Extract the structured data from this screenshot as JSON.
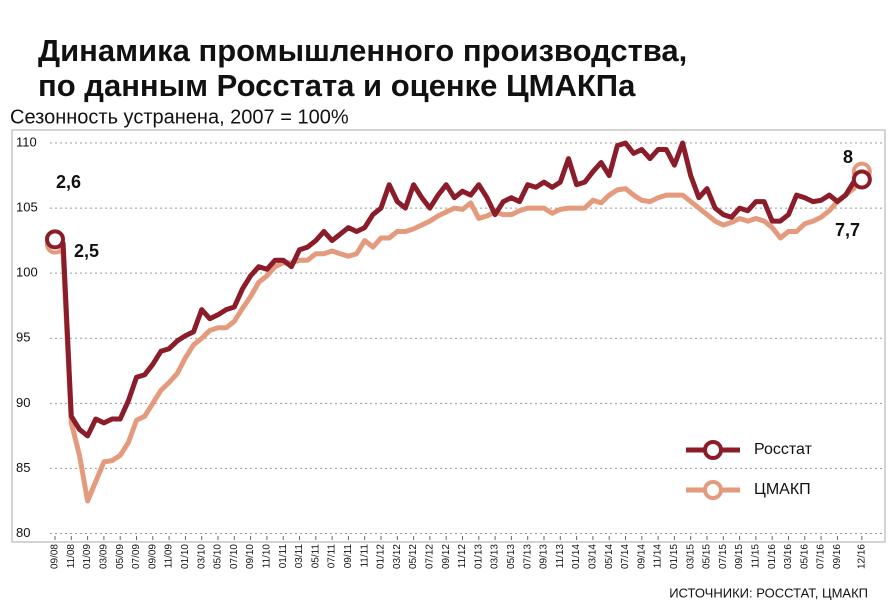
{
  "chart_data": {
    "type": "line",
    "title": [
      "Динамика промышленного производства,",
      "по данным Росстата и оценке ЦМАКПа"
    ],
    "subtitle": "Сезонность устранена, 2007 = 100%",
    "source": "ИСТОЧНИКИ: РОССТАТ, ЦМАКП",
    "annotations": [
      "2,6",
      "2,5",
      "8",
      "7,7"
    ],
    "categories": [
      "09/08",
      null,
      "11/08",
      null,
      "01/09",
      null,
      "03/09",
      null,
      "05/09",
      null,
      "07/09",
      null,
      "09/09",
      null,
      "11/09",
      null,
      "01/10",
      null,
      "03/10",
      null,
      "05/10",
      null,
      "07/10",
      null,
      "09/10",
      null,
      "11/10",
      null,
      "01/11",
      null,
      "03/11",
      null,
      "05/11",
      null,
      "07/11",
      null,
      "09/11",
      null,
      "11/11",
      null,
      "01/12",
      null,
      "03/12",
      null,
      "05/12",
      null,
      "07/12",
      null,
      "09/12",
      null,
      "11/12",
      null,
      "01/13",
      null,
      "03/13",
      null,
      "05/13",
      null,
      "07/13",
      null,
      "09/13",
      null,
      "11/13",
      null,
      "01/14",
      null,
      "03/14",
      null,
      "05/14",
      null,
      "07/14",
      null,
      "09/14",
      null,
      "11/14",
      null,
      "01/15",
      null,
      "03/15",
      null,
      "05/15",
      null,
      "07/15",
      null,
      "09/15",
      null,
      "11/15",
      null,
      "01/16",
      null,
      "03/16",
      null,
      "05/16",
      null,
      "07/16",
      null,
      "09/16",
      null,
      null,
      "12/16"
    ],
    "series": [
      {
        "name": "Росстат",
        "color": "#8b1c2a",
        "values": [
          102.6,
          102.3,
          89,
          88,
          87.5,
          88.8,
          88.5,
          88.8,
          88.8,
          90.2,
          92,
          92.2,
          93,
          94,
          94.2,
          94.8,
          95.2,
          95.5,
          97.2,
          96.5,
          96.8,
          97.2,
          97.4,
          98.8,
          99.8,
          100.5,
          100.3,
          101,
          101,
          100.5,
          101.8,
          102,
          102.5,
          103.2,
          102.5,
          103,
          103.5,
          103.2,
          103.5,
          104.5,
          105,
          106.8,
          105.5,
          105,
          106.8,
          105.8,
          105,
          106,
          106.8,
          105.8,
          106.3,
          106,
          106.8,
          105.8,
          104.5,
          105.5,
          105.8,
          105.5,
          106.8,
          106.6,
          107,
          106.6,
          107,
          108.8,
          106.8,
          107,
          107.8,
          108.5,
          107.5,
          109.8,
          110,
          109.2,
          109.5,
          108.8,
          109.5,
          109.5,
          108.3,
          110,
          107.5,
          105.8,
          106.5,
          105,
          104.5,
          104.3,
          105,
          104.8,
          105.5,
          105.5,
          104,
          104,
          104.5,
          106,
          105.8,
          105.5,
          105.6,
          106,
          105.5,
          106,
          107,
          107.2
        ]
      },
      {
        "name": "ЦМАКП",
        "color": "#e39a7d",
        "values": [
          102.2,
          101.5,
          88.5,
          86,
          82.5,
          84,
          85.5,
          85.6,
          86,
          87,
          88.7,
          89,
          90,
          91,
          91.6,
          92.3,
          93.5,
          94.5,
          95,
          95.6,
          95.8,
          95.8,
          96.3,
          97.3,
          98.2,
          99.3,
          99.8,
          100.5,
          100.8,
          100.8,
          101,
          101,
          101.5,
          101.5,
          101.7,
          101.5,
          101.3,
          101.5,
          102.5,
          102,
          102.7,
          102.7,
          103.2,
          103.2,
          103.4,
          103.7,
          104,
          104.4,
          104.7,
          105,
          104.9,
          105.4,
          104.2,
          104.4,
          104.7,
          104.5,
          104.5,
          104.8,
          105,
          105,
          105,
          104.6,
          104.9,
          105,
          105,
          105,
          105.6,
          105.4,
          106,
          106.4,
          106.5,
          106,
          105.6,
          105.5,
          105.8,
          106,
          106,
          106,
          105.5,
          105,
          104.5,
          104,
          103.7,
          103.9,
          104.2,
          104,
          104.2,
          104,
          103.5,
          102.7,
          103.2,
          103.2,
          103.8,
          104,
          104.3,
          104.8,
          105.5,
          106,
          106.5,
          107.8
        ]
      }
    ],
    "ylim": [
      79.5,
      111
    ],
    "yticks": [
      80,
      85,
      90,
      95,
      100,
      105,
      110
    ],
    "grid": true,
    "legend": "lower right"
  }
}
